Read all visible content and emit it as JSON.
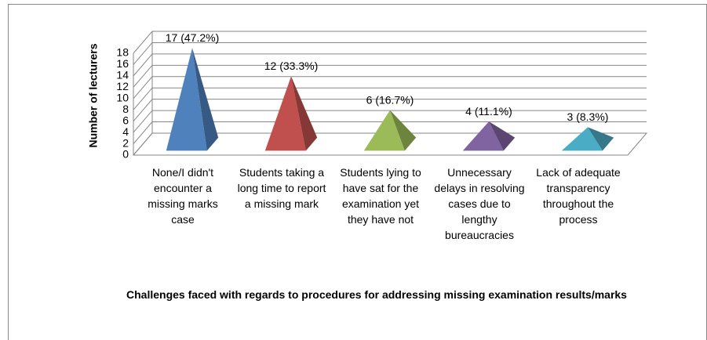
{
  "chart_data": {
    "type": "pyramid",
    "categories": [
      "None/I didn't encounter a missing marks case",
      "Students taking a long time to report a missing mark",
      "Students lying to have sat for the examination yet they have not",
      "Unnecessary delays in resolving cases due to lengthy bureaucracies",
      "Lack of adequate transparency throughout the process"
    ],
    "values": [
      17,
      12,
      6,
      4,
      3
    ],
    "value_labels": [
      "17 (47.2%)",
      "12 (33.3%)",
      "6 (16.7%)",
      "4 (11.1%)",
      "3 (8.3%)"
    ],
    "colors": [
      "#4f81bd",
      "#c0504d",
      "#9bbb59",
      "#8064a2",
      "#4bacc6"
    ],
    "ylabel": "Number of lecturers",
    "xlabel": "Challenges faced with regards to procedures for addressing missing examination results/marks",
    "ylim": [
      0,
      18
    ],
    "yticks": [
      0,
      2,
      4,
      6,
      8,
      10,
      12,
      14,
      16,
      18
    ],
    "grid": true
  }
}
